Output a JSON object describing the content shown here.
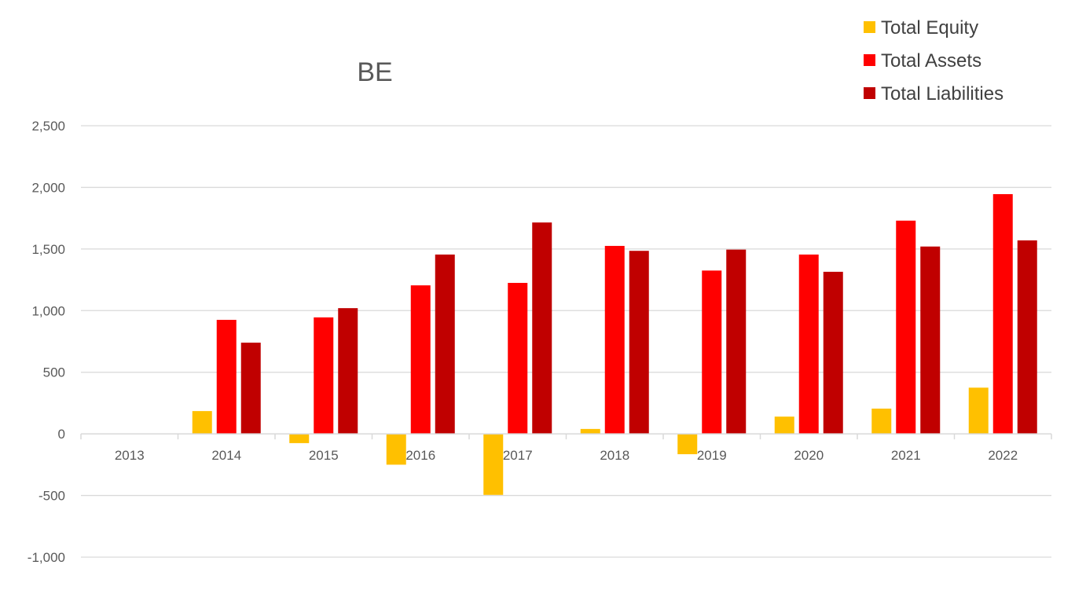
{
  "chart_data": {
    "type": "bar",
    "title": "BE",
    "xlabel": "",
    "ylabel": "",
    "categories": [
      "2013",
      "2014",
      "2015",
      "2016",
      "2017",
      "2018",
      "2019",
      "2020",
      "2021",
      "2022"
    ],
    "series": [
      {
        "name": "Total Equity",
        "color": "#FFC000",
        "values": [
          0,
          185,
          -75,
          -250,
          -495,
          40,
          -165,
          140,
          205,
          375
        ]
      },
      {
        "name": "Total Assets",
        "color": "#FF0000",
        "values": [
          0,
          925,
          945,
          1205,
          1225,
          1525,
          1325,
          1455,
          1730,
          1945
        ]
      },
      {
        "name": "Total Liabilities",
        "color": "#C00000",
        "values": [
          0,
          740,
          1020,
          1455,
          1715,
          1485,
          1495,
          1315,
          1520,
          1570
        ]
      }
    ],
    "ylim": [
      -1000,
      2500
    ],
    "yticks": [
      "-1,000",
      "-500",
      "0",
      "500",
      "1,000",
      "1,500",
      "2,000",
      "2,500"
    ],
    "ytick_values": [
      -1000,
      -500,
      0,
      500,
      1000,
      1500,
      2000,
      2500
    ],
    "grid": true,
    "legend_position": "top-right"
  }
}
